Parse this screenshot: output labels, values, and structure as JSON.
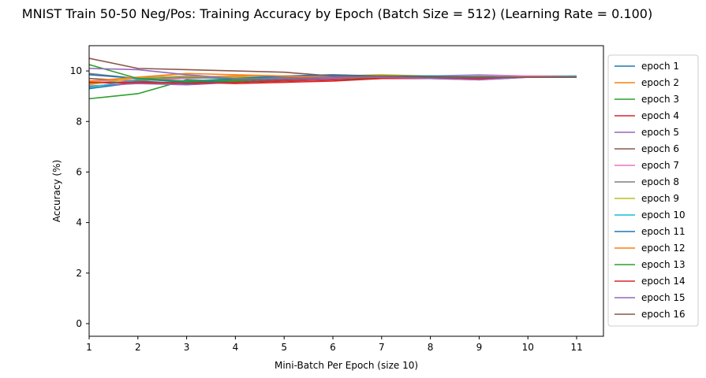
{
  "chart_data": {
    "type": "line",
    "title": "MNIST Train 50-50 Neg/Pos: Training Accuracy by Epoch (Batch Size = 512) (Learning Rate = 0.100)",
    "xlabel": "Mini-Batch Per Epoch (size 10)",
    "ylabel": "Accuracy (%)",
    "xlim": [
      1,
      11.55
    ],
    "ylim": [
      -0.5,
      11
    ],
    "x_ticks": [
      1,
      2,
      3,
      4,
      5,
      6,
      7,
      8,
      9,
      10,
      11
    ],
    "y_ticks": [
      0,
      2,
      4,
      6,
      8,
      10
    ],
    "x": [
      1,
      2,
      3,
      4,
      5,
      6,
      7,
      8,
      9,
      10,
      11
    ],
    "legend_position": "outside-right",
    "grid": false,
    "series": [
      {
        "name": "epoch 1",
        "color": "#1f77b4",
        "values": [
          9.3,
          9.55,
          9.55,
          9.6,
          9.7,
          9.75,
          9.75,
          9.75,
          9.75,
          9.75,
          9.75
        ]
      },
      {
        "name": "epoch 2",
        "color": "#ff7f0e",
        "values": [
          9.5,
          9.6,
          9.75,
          9.8,
          9.75,
          9.75,
          9.8,
          9.75,
          9.75,
          9.8,
          9.8
        ]
      },
      {
        "name": "epoch 3",
        "color": "#2ca02c",
        "values": [
          8.9,
          9.1,
          9.65,
          9.6,
          9.75,
          9.75,
          9.7,
          9.75,
          9.8,
          9.75,
          9.75
        ]
      },
      {
        "name": "epoch 4",
        "color": "#d62728",
        "values": [
          9.55,
          9.5,
          9.55,
          9.5,
          9.55,
          9.6,
          9.7,
          9.7,
          9.75,
          9.75,
          9.8
        ]
      },
      {
        "name": "epoch 5",
        "color": "#9467bd",
        "values": [
          9.4,
          9.5,
          9.45,
          9.55,
          9.65,
          9.7,
          9.75,
          9.7,
          9.65,
          9.75,
          9.75
        ]
      },
      {
        "name": "epoch 6",
        "color": "#8c564b",
        "values": [
          9.7,
          9.6,
          9.5,
          9.55,
          9.65,
          9.75,
          9.7,
          9.75,
          9.8,
          9.75,
          9.75
        ]
      },
      {
        "name": "epoch 7",
        "color": "#e377c2",
        "values": [
          9.6,
          9.65,
          9.7,
          9.75,
          9.75,
          9.8,
          9.75,
          9.8,
          9.85,
          9.8,
          9.8
        ]
      },
      {
        "name": "epoch 8",
        "color": "#7f7f7f",
        "values": [
          9.9,
          9.7,
          9.75,
          9.7,
          9.75,
          9.8,
          9.75,
          9.75,
          9.75,
          9.75,
          9.75
        ]
      },
      {
        "name": "epoch 9",
        "color": "#bcbd22",
        "values": [
          9.45,
          9.75,
          9.8,
          9.75,
          9.8,
          9.8,
          9.85,
          9.8,
          9.75,
          9.75,
          9.8
        ]
      },
      {
        "name": "epoch 10",
        "color": "#17becf",
        "values": [
          9.35,
          9.65,
          9.6,
          9.7,
          9.8,
          9.8,
          9.75,
          9.8,
          9.8,
          9.75,
          9.8
        ]
      },
      {
        "name": "epoch 11",
        "color": "#1f77b4",
        "values": [
          9.85,
          9.7,
          9.55,
          9.7,
          9.8,
          9.85,
          9.8,
          9.8,
          9.75,
          9.75,
          9.75
        ]
      },
      {
        "name": "epoch 12",
        "color": "#ff7f0e",
        "values": [
          9.6,
          9.75,
          9.9,
          9.85,
          9.8,
          9.75,
          9.8,
          9.75,
          9.75,
          9.75,
          9.75
        ]
      },
      {
        "name": "epoch 13",
        "color": "#2ca02c",
        "values": [
          10.25,
          9.7,
          9.6,
          9.65,
          9.7,
          9.75,
          9.7,
          9.75,
          9.7,
          9.75,
          9.75
        ]
      },
      {
        "name": "epoch 14",
        "color": "#d62728",
        "values": [
          9.55,
          9.55,
          9.5,
          9.55,
          9.6,
          9.65,
          9.7,
          9.7,
          9.7,
          9.75,
          9.75
        ]
      },
      {
        "name": "epoch 15",
        "color": "#9467bd",
        "values": [
          10.1,
          10.05,
          9.85,
          9.7,
          9.7,
          9.75,
          9.75,
          9.7,
          9.65,
          9.75,
          9.75
        ]
      },
      {
        "name": "epoch 16",
        "color": "#8c564b",
        "values": [
          10.5,
          10.1,
          10.05,
          10.0,
          9.95,
          9.8,
          9.8,
          9.75,
          9.75,
          9.75,
          9.75
        ]
      }
    ]
  }
}
